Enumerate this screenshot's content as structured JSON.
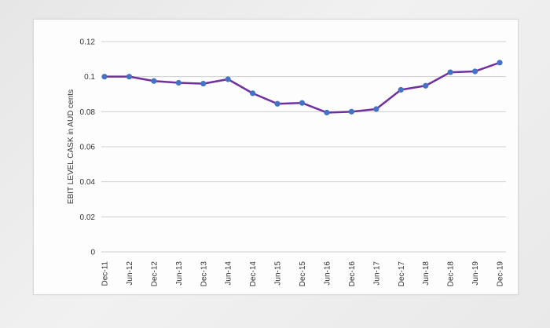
{
  "chart_data": {
    "type": "line",
    "title": "",
    "xlabel": "",
    "ylabel": "EBIT LEVEL CASK in AUD cents",
    "ylim": [
      0,
      0.12
    ],
    "yticks": [
      0,
      0.02,
      0.04,
      0.06,
      0.08,
      0.1,
      0.12
    ],
    "ytick_labels": [
      "0",
      "0.02",
      "0.04",
      "0.06",
      "0.08",
      "0.1",
      "0.12"
    ],
    "grid": true,
    "legend": "none",
    "line_color": "#7030a0",
    "marker_color": "#4472c4",
    "categories": [
      "Dec-11",
      "Jun-12",
      "Dec-12",
      "Jun-13",
      "Dec-13",
      "Jun-14",
      "Dec-14",
      "Jun-15",
      "Dec-15",
      "Jun-16",
      "Dec-16",
      "Jun-17",
      "Dec-17",
      "Jun-18",
      "Dec-18",
      "Jun-19",
      "Dec-19"
    ],
    "series": [
      {
        "values": [
          0.1,
          0.1,
          0.0975,
          0.0965,
          0.096,
          0.0985,
          0.0905,
          0.0845,
          0.085,
          0.0795,
          0.08,
          0.0815,
          0.0925,
          0.0948,
          0.1025,
          0.103,
          0.108
        ]
      }
    ]
  }
}
